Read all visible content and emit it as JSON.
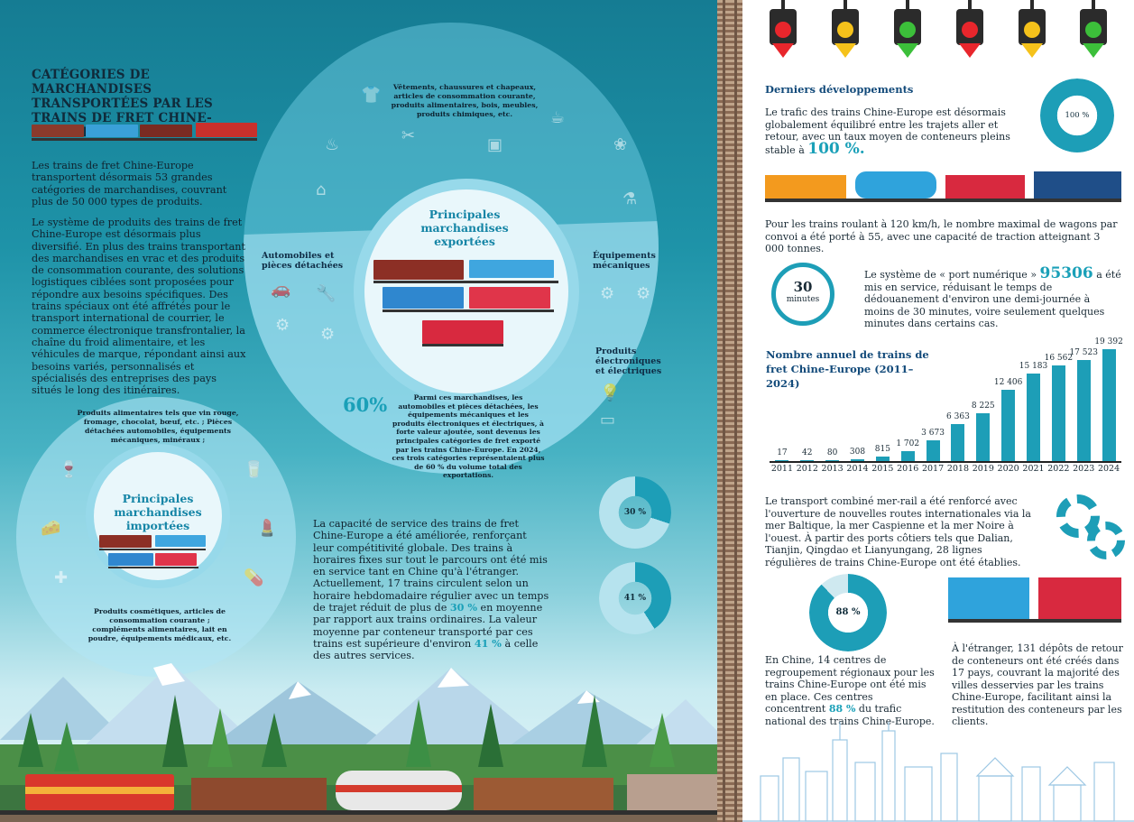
{
  "left": {
    "title": "CATÉGORIES DE MARCHANDISES TRANSPORTÉES PAR LES TRAINS DE FRET CHINE-EUROPE :",
    "intro": "Les trains de fret Chine-Europe transportent désormais 53 grandes catégories de marchandises, couvrant plus de 50 000 types de produits.",
    "system": "Le système de produits des trains de fret Chine-Europe est désormais plus diversifié. En plus des trains transportant des marchandises en vrac et des produits de consommation courante, des solutions logistiques ciblées sont proposées pour répondre aux besoins spécifiques. Des trains spéciaux ont été affrétés pour le transport international de courrier, le commerce électronique transfrontalier, la chaîne du froid alimentaire, et les véhicules de marque, répondant ainsi aux besoins variés, personnalisés et spécialisés des entreprises des pays situés le long des itinéraires.",
    "exports": {
      "title": "Principales marchandises exportées",
      "top_text": "Vêtements, chaussures et chapeaux, articles de consommation courante, produits alimentaires, bois, meubles, produits chimiques, etc.",
      "cat_auto": "Automobiles et pièces détachées",
      "cat_mech": "Équipements mécaniques",
      "cat_elec": "Produits électroniques et électriques",
      "pct": "60%",
      "pct_text": "Parmi ces marchandises, les automobiles et pièces détachées, les équipements mécaniques et les produits électroniques et électriques, à forte valeur ajoutée, sont devenus les principales catégories de fret exporté par les trains Chine-Europe. En 2024, ces trois catégories représentaient plus de 60 % du volume total des exportations."
    },
    "imports": {
      "title": "Principales marchandises importées",
      "top_text": "Produits alimentaires tels que vin rouge, fromage, chocolat, bœuf, etc. ; Pièces détachées automobiles, équipements mécaniques, minéraux ;",
      "bottom_text": "Produits cosmétiques, articles de consommation courante ; compléments alimentaires, lait en poudre, équipements médicaux, etc."
    },
    "capacity_a": "La capacité de service des trains de fret Chine-Europe a été améliorée, renforçant leur compétitivité globale. Des trains à horaires fixes sur tout le parcours ont été mis en service tant en Chine qu'à l'étranger. Actuellement, 17 trains circulent selon un horaire hebdomadaire régulier avec un temps de trajet réduit de plus de",
    "capacity_pct1": "30 %",
    "capacity_b": "en moyenne par rapport aux trains ordinaires. La valeur moyenne par conteneur transporté par ces trains est supérieure d'environ",
    "capacity_pct2": "41 %",
    "capacity_c": "à celle des autres services.",
    "donut1": {
      "label": "30 %",
      "value": 30
    },
    "donut2": {
      "label": "41 %",
      "value": 41
    }
  },
  "right": {
    "dev_title": "Derniers développements",
    "dev_text": "Le trafic des trains Chine-Europe est désormais globalement équilibré entre les trajets aller et retour, avec un taux moyen de conteneurs pleins stable à",
    "dev_pct": "100 %.",
    "donut100": {
      "label": "100 %",
      "value": 100
    },
    "speed_text": "Pour les trains roulant à 120 km/h, le nombre maximal de wagons par convoi a été porté à 55, avec une capacité de traction atteignant 3 000 tonnes.",
    "clock_num": "30",
    "clock_unit": "minutes",
    "port_a": "Le système de « port numérique »",
    "port_num": "95306",
    "port_b": "a été mis en service, réduisant le temps de dédouanement d'environ une demi-journée à moins de 30 minutes, voire seulement quelques minutes dans certains cas.",
    "chart_title": "Nombre annuel de trains de fret Chine-Europe (2011–2024)",
    "seamix": "Le transport combiné mer-rail a été renforcé avec l'ouverture de nouvelles routes internationales via la mer Baltique, la mer Caspienne et la mer Noire à l'ouest. À partir des ports côtiers tels que Dalian, Tianjin, Qingdao et Lianyungang, 28 lignes régulières de trains Chine-Europe ont été établies.",
    "donut88": {
      "label": "88 %",
      "value": 88
    },
    "china_a": "En Chine, 14 centres de regroupement régionaux pour les trains Chine-Europe ont été mis en place. Ces centres concentrent",
    "china_pct": "88 %",
    "china_b": "du trafic national des trains Chine-Europe.",
    "abroad": "À l'étranger, 131 dépôts de retour de conteneurs ont été créés dans 17 pays, couvrant la majorité des villes desservies par les trains Chine-Europe, facilitant ainsi la restitution des conteneurs par les clients."
  },
  "chart_data": {
    "type": "bar",
    "title": "Nombre annuel de trains de fret Chine-Europe (2011–2024)",
    "categories": [
      "2011",
      "2012",
      "2013",
      "2014",
      "2015",
      "2016",
      "2017",
      "2018",
      "2019",
      "2020",
      "2021",
      "2022",
      "2023",
      "2024"
    ],
    "values": [
      17,
      42,
      80,
      308,
      815,
      1702,
      3673,
      6363,
      8225,
      12406,
      15183,
      16562,
      17523,
      19392
    ],
    "value_labels": [
      "17",
      "42",
      "80",
      "308",
      "815",
      "1 702",
      "3 673",
      "6 363",
      "8 225",
      "12 406",
      "15 183",
      "16 562",
      "17 523",
      "19 392"
    ],
    "ylim": [
      0,
      19392
    ],
    "color": "#1d9eb7"
  },
  "colors": {
    "accent": "#1aa0b8",
    "red_light": "#e8262c",
    "yellow_light": "#f5c21b",
    "green_light": "#3cbf3a"
  },
  "traffic_lights": [
    "red",
    "yellow",
    "green",
    "red",
    "yellow",
    "green"
  ]
}
